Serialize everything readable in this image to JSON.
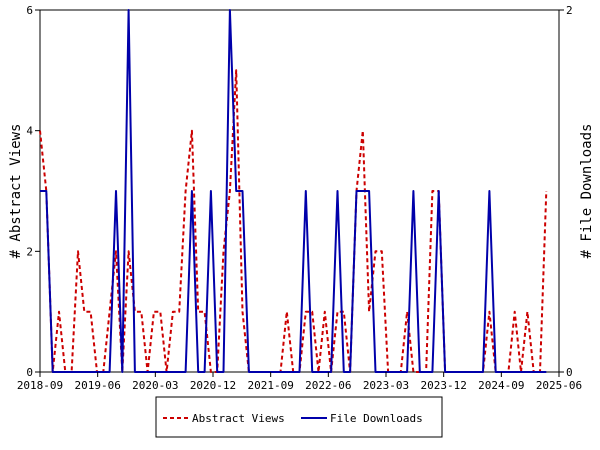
{
  "chart_data": {
    "type": "line",
    "x_tick_labels": [
      "2018-09",
      "2019-06",
      "2020-03",
      "2020-12",
      "2021-09",
      "2022-06",
      "2023-03",
      "2023-12",
      "2024-09",
      "2025-06"
    ],
    "y_left": {
      "label": "# Abstract Views",
      "ylim": [
        0,
        6
      ],
      "ticks": [
        "0",
        "2",
        "4",
        "6"
      ]
    },
    "y_right": {
      "label": "# File Downloads",
      "ylim": [
        0,
        2
      ],
      "ticks": [
        "0",
        "2"
      ]
    },
    "x_range_months": [
      0,
      82
    ],
    "legend_position": "bottom-center",
    "grid": false,
    "series": [
      {
        "name": "Abstract Views",
        "axis": "left",
        "color": "#cc0000",
        "style": "dashed",
        "points": [
          [
            0,
            4
          ],
          [
            1,
            3
          ],
          [
            2,
            0
          ],
          [
            3,
            1
          ],
          [
            4,
            0
          ],
          [
            5,
            0
          ],
          [
            6,
            2
          ],
          [
            7,
            1
          ],
          [
            8,
            1
          ],
          [
            9,
            0
          ],
          [
            10,
            0
          ],
          [
            11,
            1
          ],
          [
            12,
            2
          ],
          [
            13,
            0
          ],
          [
            14,
            2
          ],
          [
            15,
            1
          ],
          [
            16,
            1
          ],
          [
            17,
            0
          ],
          [
            18,
            1
          ],
          [
            19,
            1
          ],
          [
            20,
            0
          ],
          [
            21,
            1
          ],
          [
            22,
            1
          ],
          [
            23,
            3
          ],
          [
            24,
            4
          ],
          [
            25,
            1
          ],
          [
            26,
            1
          ],
          [
            27,
            0
          ],
          [
            28,
            0
          ],
          [
            29,
            2
          ],
          [
            30,
            3
          ],
          [
            31,
            5
          ],
          [
            32,
            1
          ],
          [
            33,
            0
          ],
          [
            34,
            0
          ],
          [
            35,
            0
          ],
          [
            36,
            0
          ],
          [
            37,
            0
          ],
          [
            38,
            0
          ],
          [
            39,
            1
          ],
          [
            40,
            0
          ],
          [
            41,
            0
          ],
          [
            42,
            1
          ],
          [
            43,
            1
          ],
          [
            44,
            0
          ],
          [
            45,
            1
          ],
          [
            46,
            0
          ],
          [
            47,
            1
          ],
          [
            48,
            1
          ],
          [
            49,
            0
          ],
          [
            50,
            3
          ],
          [
            51,
            4
          ],
          [
            52,
            1
          ],
          [
            53,
            2
          ],
          [
            54,
            2
          ],
          [
            55,
            0
          ],
          [
            56,
            0
          ],
          [
            57,
            0
          ],
          [
            58,
            1
          ],
          [
            59,
            0
          ],
          [
            60,
            0
          ],
          [
            61,
            0
          ],
          [
            62,
            3
          ],
          [
            63,
            3
          ],
          [
            64,
            0
          ],
          [
            65,
            0
          ],
          [
            66,
            0
          ],
          [
            67,
            0
          ],
          [
            68,
            0
          ],
          [
            69,
            0
          ],
          [
            70,
            0
          ],
          [
            71,
            1
          ],
          [
            72,
            0
          ],
          [
            73,
            0
          ],
          [
            74,
            0
          ],
          [
            75,
            1
          ],
          [
            76,
            0
          ],
          [
            77,
            1
          ],
          [
            78,
            0
          ],
          [
            79,
            0
          ],
          [
            80,
            3
          ]
        ]
      },
      {
        "name": "File Downloads",
        "axis": "right",
        "color": "#0000aa",
        "style": "solid",
        "points": [
          [
            0,
            1
          ],
          [
            1,
            1
          ],
          [
            2,
            0
          ],
          [
            3,
            0
          ],
          [
            4,
            0
          ],
          [
            5,
            0
          ],
          [
            6,
            0
          ],
          [
            7,
            0
          ],
          [
            8,
            0
          ],
          [
            9,
            0
          ],
          [
            10,
            0
          ],
          [
            11,
            0
          ],
          [
            12,
            1
          ],
          [
            13,
            0
          ],
          [
            14,
            2
          ],
          [
            15,
            0
          ],
          [
            16,
            0
          ],
          [
            17,
            0
          ],
          [
            18,
            0
          ],
          [
            19,
            0
          ],
          [
            20,
            0
          ],
          [
            21,
            0
          ],
          [
            22,
            0
          ],
          [
            23,
            0
          ],
          [
            24,
            1
          ],
          [
            25,
            0
          ],
          [
            26,
            0
          ],
          [
            27,
            1
          ],
          [
            28,
            0
          ],
          [
            29,
            0
          ],
          [
            30,
            2
          ],
          [
            31,
            1
          ],
          [
            32,
            1
          ],
          [
            33,
            0
          ],
          [
            34,
            0
          ],
          [
            35,
            0
          ],
          [
            36,
            0
          ],
          [
            37,
            0
          ],
          [
            38,
            0
          ],
          [
            39,
            0
          ],
          [
            40,
            0
          ],
          [
            41,
            0
          ],
          [
            42,
            1
          ],
          [
            43,
            0
          ],
          [
            44,
            0
          ],
          [
            45,
            0
          ],
          [
            46,
            0
          ],
          [
            47,
            1
          ],
          [
            48,
            0
          ],
          [
            49,
            0
          ],
          [
            50,
            1
          ],
          [
            51,
            1
          ],
          [
            52,
            1
          ],
          [
            53,
            0
          ],
          [
            54,
            0
          ],
          [
            55,
            0
          ],
          [
            56,
            0
          ],
          [
            57,
            0
          ],
          [
            58,
            0
          ],
          [
            59,
            1
          ],
          [
            60,
            0
          ],
          [
            61,
            0
          ],
          [
            62,
            0
          ],
          [
            63,
            1
          ],
          [
            64,
            0
          ],
          [
            65,
            0
          ],
          [
            66,
            0
          ],
          [
            67,
            0
          ],
          [
            68,
            0
          ],
          [
            69,
            0
          ],
          [
            70,
            0
          ],
          [
            71,
            1
          ],
          [
            72,
            0
          ],
          [
            73,
            0
          ],
          [
            74,
            0
          ],
          [
            75,
            0
          ],
          [
            76,
            0
          ],
          [
            77,
            0
          ],
          [
            78,
            0
          ],
          [
            79,
            0
          ],
          [
            80,
            0
          ]
        ]
      }
    ]
  }
}
